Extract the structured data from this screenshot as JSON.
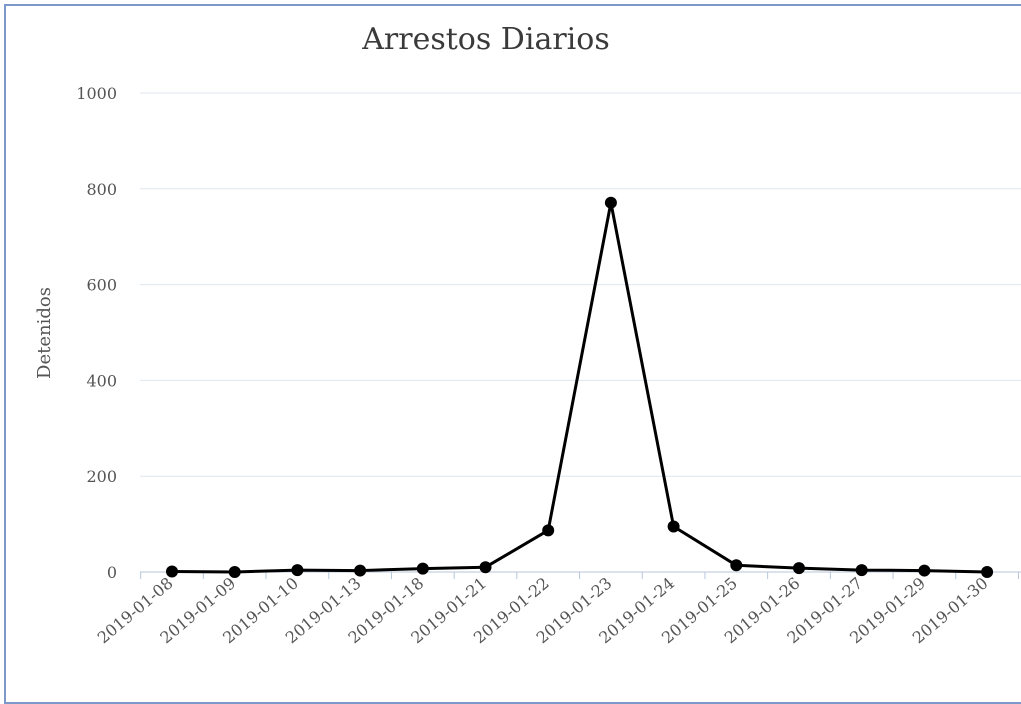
{
  "chart_data": {
    "type": "line",
    "title": "Arrestos Diarios",
    "xlabel": "",
    "ylabel": "Detenidos",
    "ylim": [
      0,
      1000
    ],
    "yticks": [
      0,
      200,
      400,
      600,
      800,
      1000
    ],
    "grid": true,
    "categories": [
      "2019-01-08",
      "2019-01-09",
      "2019-01-10",
      "2019-01-13",
      "2019-01-18",
      "2019-01-21",
      "2019-01-22",
      "2019-01-23",
      "2019-01-24",
      "2019-01-25",
      "2019-01-26",
      "2019-01-27",
      "2019-01-29",
      "2019-01-30"
    ],
    "series": [
      {
        "values": [
          1,
          0,
          4,
          3,
          7,
          10,
          87,
          771,
          95,
          14,
          8,
          4,
          3,
          0
        ],
        "color": "#000000"
      }
    ],
    "gridline_color": "#dfe6ee",
    "axis_color": "#b7c6da"
  }
}
